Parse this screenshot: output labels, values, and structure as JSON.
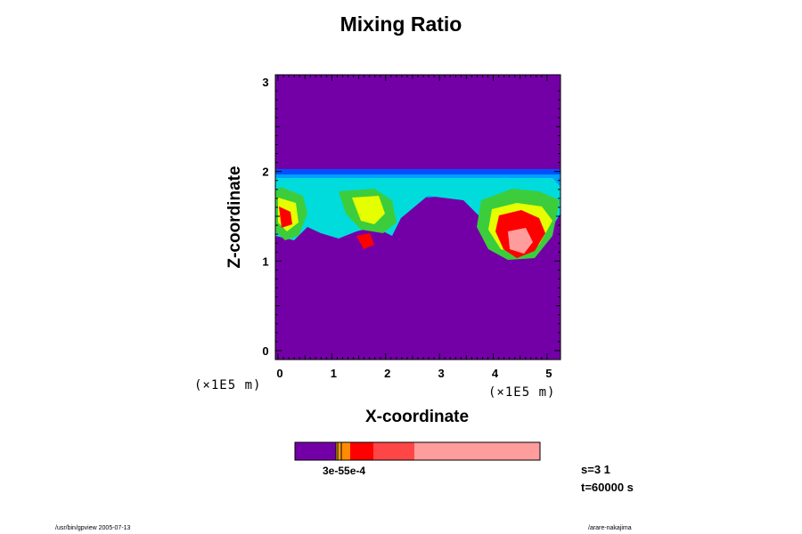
{
  "chart_data": {
    "type": "heatmap",
    "title": "Mixing Ratio",
    "xlabel": "X-coordinate",
    "ylabel": "Z-coordinate",
    "x_unit": "(×1E5 m)",
    "y_unit": "(×1E5 m)",
    "xlim": [
      -0.05,
      5.25
    ],
    "ylim": [
      -0.1,
      3.08
    ],
    "x_ticks": [
      "0",
      "1",
      "2",
      "3",
      "4",
      "5"
    ],
    "y_ticks": [
      "0",
      "1",
      "2",
      "3"
    ],
    "background_value_color": "#7300a6",
    "colorbar": {
      "label": "3e-55e-4",
      "colors": [
        "#7300a6",
        "#ffd400",
        "#ff9c1e",
        "#ff8c00",
        "#ff0000",
        "#ff4646",
        "#ff9c9c"
      ]
    },
    "info": [
      "s=3 1",
      "t=60000 s"
    ]
  },
  "footer": {
    "left": "/usr/bin/gpview 2005-07-13",
    "right": "/arare-nakajima"
  },
  "colors": {
    "frame": "#000000",
    "purple": "#7300a6",
    "blue": "#0050ff",
    "cyan": "#00dcdc",
    "green": "#3ccd3c",
    "yellow": "#e6ff00",
    "red": "#ff0000",
    "pink": "#ff9c9c"
  }
}
